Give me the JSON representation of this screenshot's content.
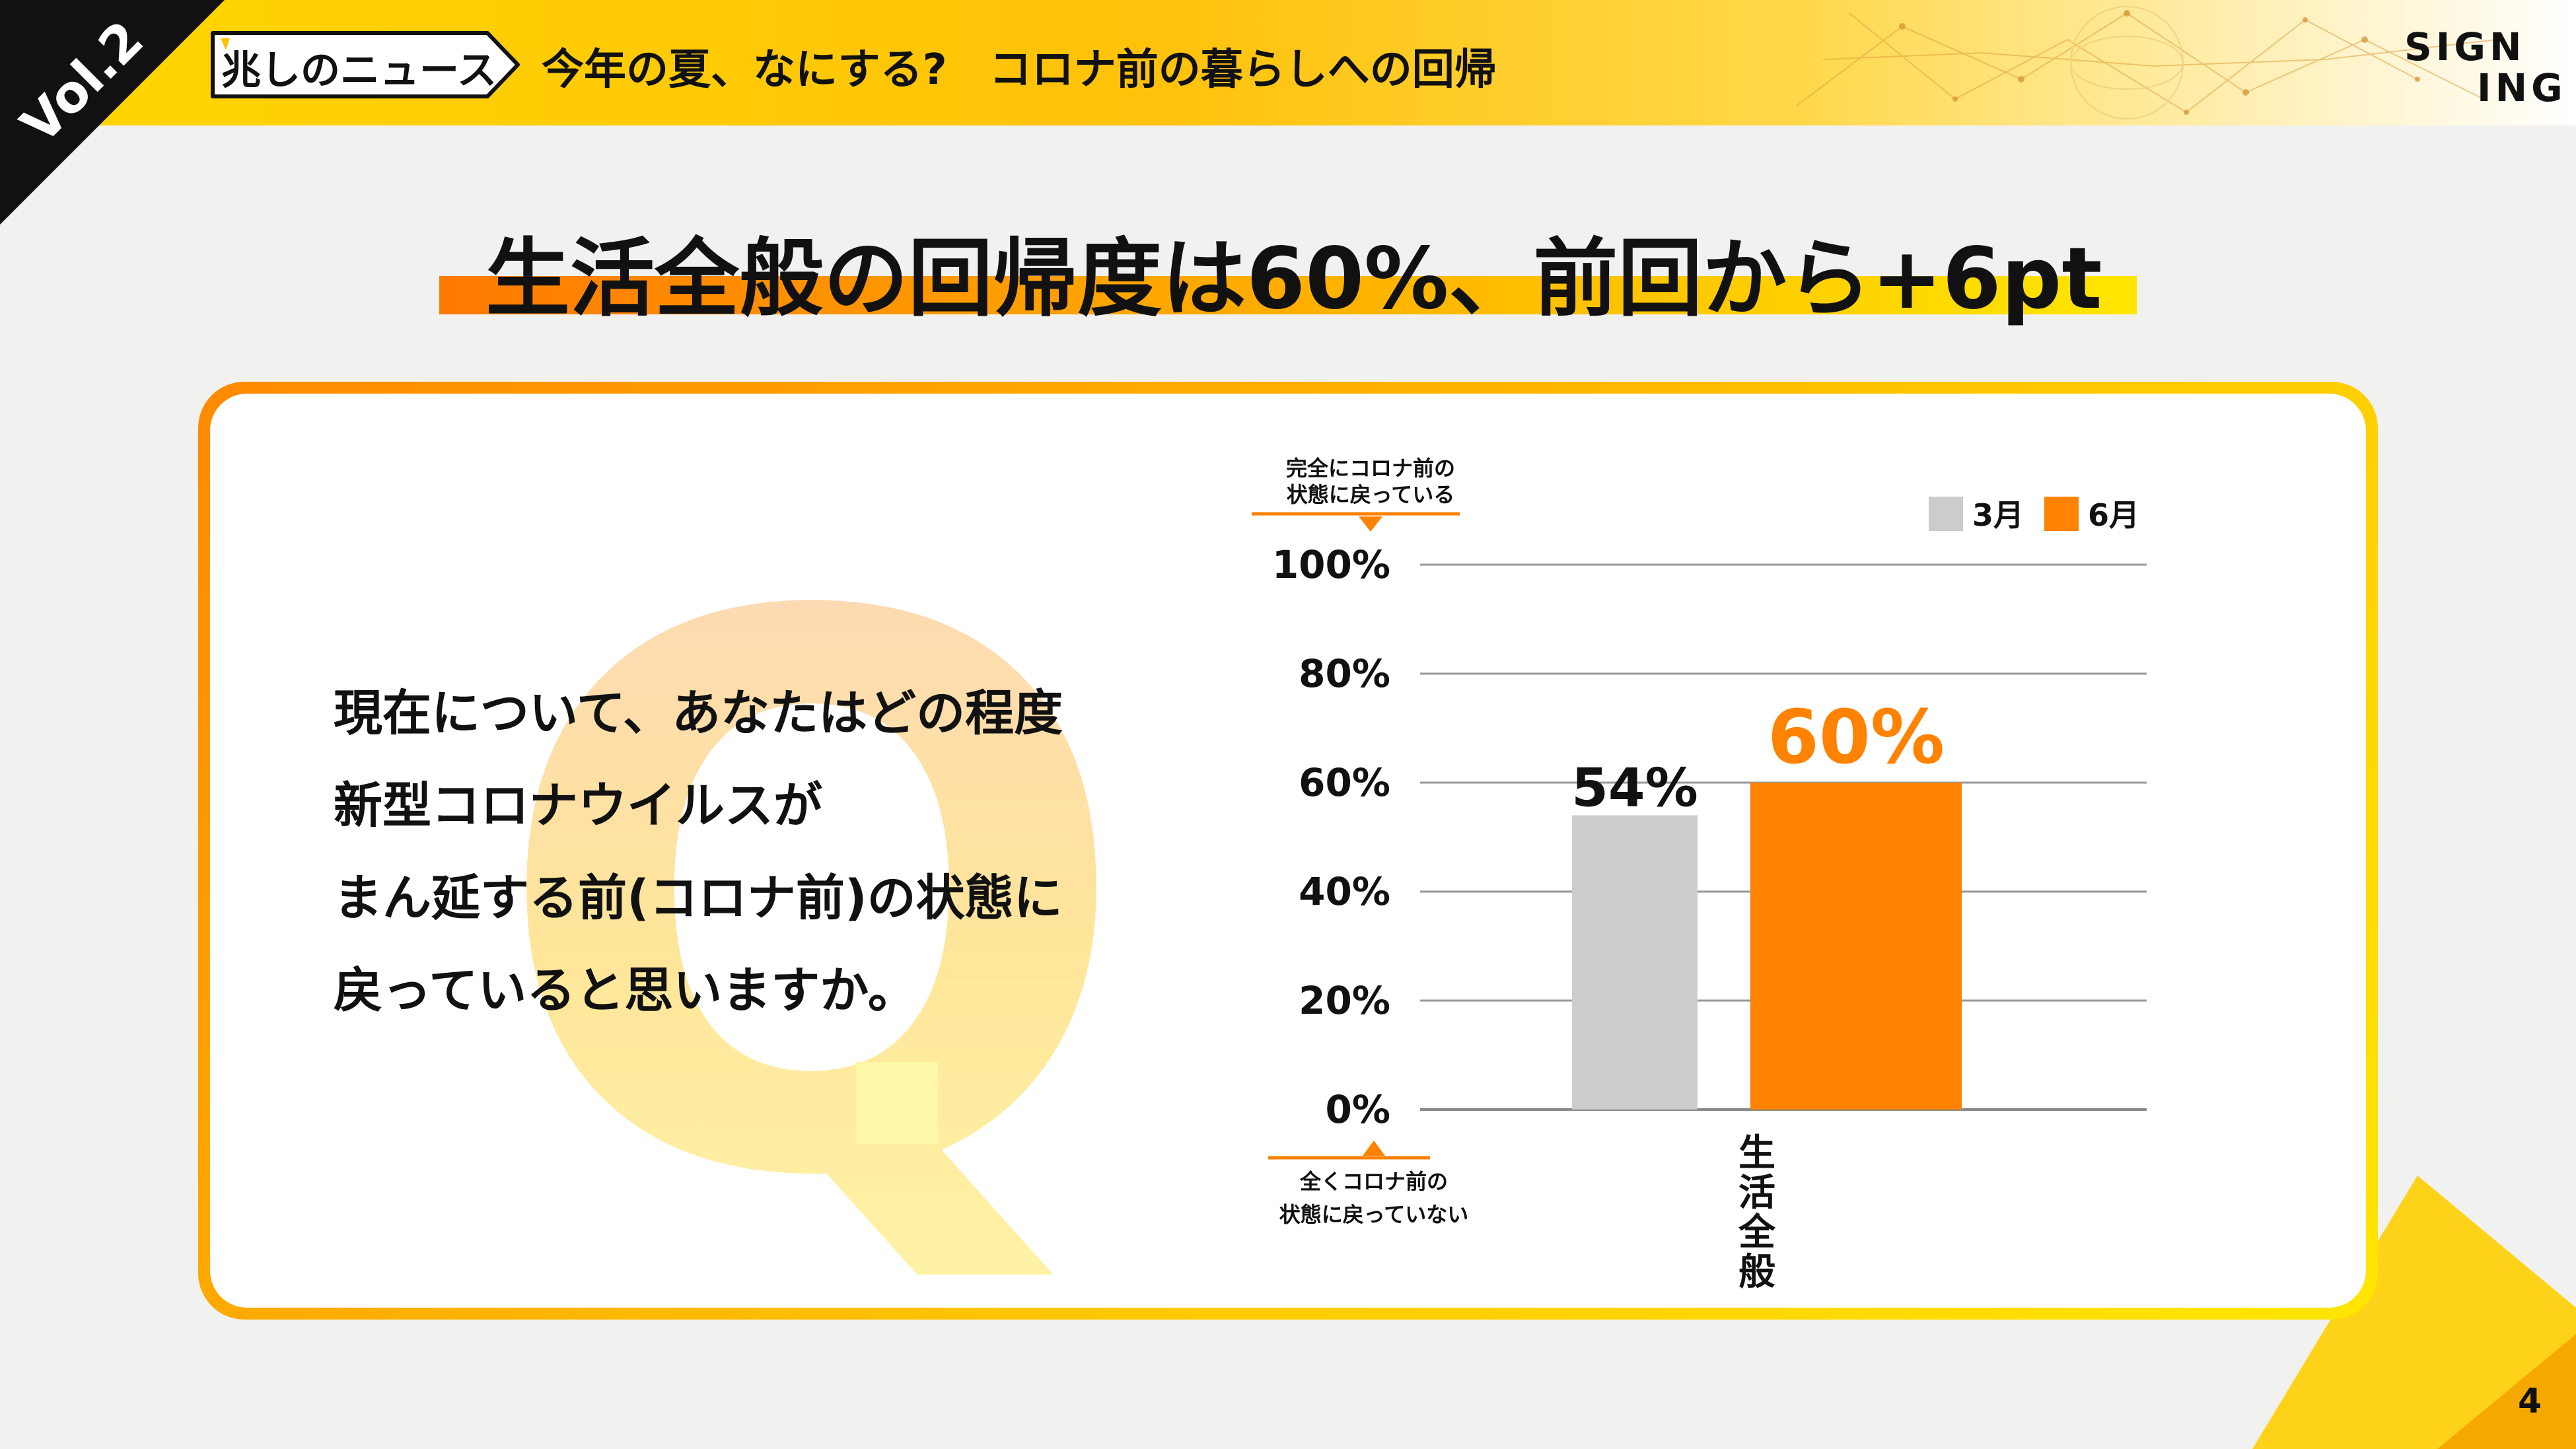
{
  "header": {
    "vol": "Vol.2",
    "news_tag": "兆しのニュース",
    "title": "今年の夏、なにする?　コロナ前の暮らしへの回帰",
    "logo_line1": "SIGN",
    "logo_line2": "ING"
  },
  "main_title": "生活全般の回帰度は60%、前回から+6pt",
  "question": {
    "mark": "Q.",
    "lines": [
      "現在について、あなたはどの程度",
      "新型コロナウイルスが",
      "まん延する前(コロナ前)の状態に",
      "戻っていると思いますか。"
    ]
  },
  "page_number": "4",
  "colors": {
    "accent_orange": "#ff8200",
    "gray_bar": "#cccccc",
    "yellow": "#ffd600"
  },
  "chart_data": {
    "type": "bar",
    "categories": [
      "生活全般"
    ],
    "series": [
      {
        "name": "3月",
        "values": [
          54
        ],
        "color": "#cccccc",
        "label": "54%"
      },
      {
        "name": "6月",
        "values": [
          60
        ],
        "color": "#ff8200",
        "label": "60%"
      }
    ],
    "ylim": [
      0,
      100
    ],
    "yticks": [
      "0%",
      "20%",
      "40%",
      "60%",
      "80%",
      "100%"
    ],
    "y_top_note": [
      "完全にコロナ前の",
      "状態に戻っている"
    ],
    "y_bottom_note": [
      "全くコロナ前の",
      "状態に戻っていない"
    ],
    "legend_position": "top-right",
    "grid": true
  }
}
